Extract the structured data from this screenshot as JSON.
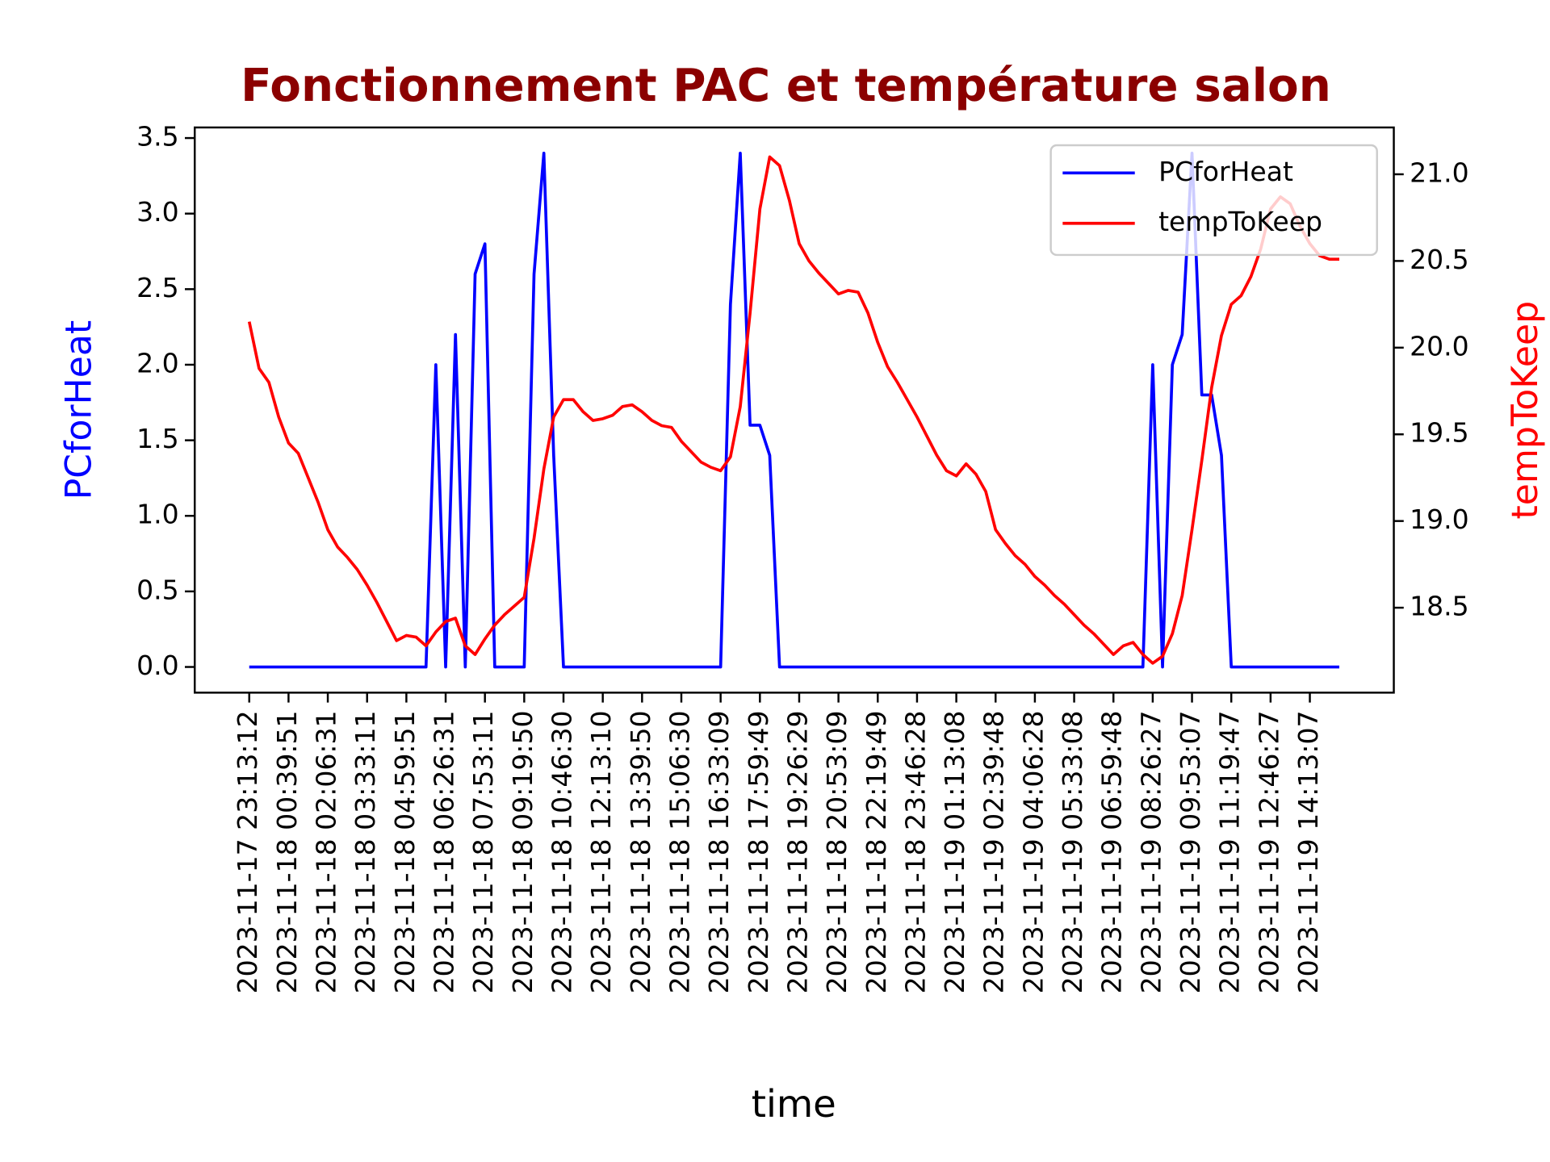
{
  "chart_data": {
    "type": "line",
    "title": "Fonctionnement PAC et température salon",
    "title_color": "#8b0000",
    "x_label": "time",
    "y_label": "PCforHeat",
    "y_label_color": "#0000ff",
    "y2_label": "tempToKeep",
    "y2_label_color": "#ff0000",
    "categories": [
      "2023-11-17 23:13:12",
      null,
      null,
      null,
      "2023-11-18 00:39:51",
      null,
      null,
      null,
      "2023-11-18 02:06:31",
      null,
      null,
      null,
      "2023-11-18 03:33:11",
      null,
      null,
      null,
      "2023-11-18 04:59:51",
      null,
      null,
      null,
      "2023-11-18 06:26:31",
      null,
      null,
      null,
      "2023-11-18 07:53:11",
      null,
      null,
      null,
      "2023-11-18 09:19:50",
      null,
      null,
      null,
      "2023-11-18 10:46:30",
      null,
      null,
      null,
      "2023-11-18 12:13:10",
      null,
      null,
      null,
      "2023-11-18 13:39:50",
      null,
      null,
      null,
      "2023-11-18 15:06:30",
      null,
      null,
      null,
      "2023-11-18 16:33:09",
      null,
      null,
      null,
      "2023-11-18 17:59:49",
      null,
      null,
      null,
      "2023-11-18 19:26:29",
      null,
      null,
      null,
      "2023-11-18 20:53:09",
      null,
      null,
      null,
      "2023-11-18 22:19:49",
      null,
      null,
      null,
      "2023-11-18 23:46:28",
      null,
      null,
      null,
      "2023-11-19 01:13:08",
      null,
      null,
      null,
      "2023-11-19 02:39:48",
      null,
      null,
      null,
      "2023-11-19 04:06:28",
      null,
      null,
      null,
      "2023-11-19 05:33:08",
      null,
      null,
      null,
      "2023-11-19 06:59:48",
      null,
      null,
      null,
      "2023-11-19 08:26:27",
      null,
      null,
      null,
      "2023-11-19 09:53:07",
      null,
      null,
      null,
      "2023-11-19 11:19:47",
      null,
      null,
      null,
      "2023-11-19 12:46:27",
      null,
      null,
      null,
      "2023-11-19 14:13:07",
      null,
      null,
      null
    ],
    "series": [
      {
        "name": "PCforHeat",
        "color": "#0000ff",
        "values": [
          0,
          0,
          0,
          0,
          0,
          0,
          0,
          0,
          0,
          0,
          0,
          0,
          0,
          0,
          0,
          0,
          0,
          0,
          0,
          2.0,
          0,
          2.2,
          0,
          2.6,
          2.8,
          0,
          0,
          0,
          0,
          2.6,
          3.4,
          1.4,
          0,
          0,
          0,
          0,
          0,
          0,
          0,
          0,
          0,
          0,
          0,
          0,
          0,
          0,
          0,
          0,
          0,
          2.4,
          3.4,
          1.6,
          1.6,
          1.4,
          0,
          0,
          0,
          0,
          0,
          0,
          0,
          0,
          0,
          0,
          0,
          0,
          0,
          0,
          0,
          0,
          0,
          0,
          0,
          0,
          0,
          0,
          0,
          0,
          0,
          0,
          0,
          0,
          0,
          0,
          0,
          0,
          0,
          0,
          0,
          0,
          0,
          0,
          2.0,
          0,
          2.0,
          2.2,
          3.4,
          1.8,
          1.8,
          1.4,
          0,
          0,
          0,
          0,
          0,
          0,
          0,
          0,
          0,
          0,
          0,
          0
        ]
      },
      {
        "name": "tempToKeep",
        "color": "#ff0000",
        "axis": "y2",
        "values": [
          20.15,
          19.88,
          19.8,
          19.6,
          19.45,
          19.39,
          19.25,
          19.11,
          18.95,
          18.85,
          18.79,
          18.72,
          18.63,
          18.53,
          18.42,
          18.31,
          18.34,
          18.33,
          18.28,
          18.36,
          18.42,
          18.44,
          18.28,
          18.23,
          18.32,
          18.4,
          18.46,
          18.51,
          18.56,
          18.9,
          19.3,
          19.6,
          19.7,
          19.7,
          19.63,
          19.58,
          19.59,
          19.61,
          19.66,
          19.67,
          19.63,
          19.58,
          19.55,
          19.54,
          19.46,
          19.4,
          19.34,
          19.31,
          19.29,
          19.37,
          19.66,
          20.2,
          20.8,
          21.1,
          21.05,
          20.85,
          20.6,
          20.5,
          20.43,
          20.37,
          20.31,
          20.33,
          20.32,
          20.2,
          20.03,
          19.89,
          19.8,
          19.7,
          19.6,
          19.49,
          19.38,
          19.29,
          19.26,
          19.33,
          19.27,
          19.17,
          18.95,
          18.87,
          18.8,
          18.75,
          18.68,
          18.63,
          18.57,
          18.52,
          18.46,
          18.4,
          18.35,
          18.29,
          18.23,
          18.28,
          18.3,
          18.23,
          18.18,
          18.22,
          18.35,
          18.57,
          18.95,
          19.35,
          19.77,
          20.07,
          20.25,
          20.3,
          20.41,
          20.57,
          20.8,
          20.87,
          20.83,
          20.7,
          20.6,
          20.53,
          20.51,
          20.51
        ]
      }
    ],
    "xlim": [
      -5.55,
      116.55
    ],
    "ylim": [
      -0.17,
      3.57
    ],
    "yticks": [
      {
        "value": 0,
        "label": "0.0"
      },
      0.5,
      {
        "value": 1,
        "label": "1.0"
      },
      1.5,
      {
        "value": 2,
        "label": "2.0"
      },
      2.5,
      {
        "value": 3,
        "label": "3.0"
      },
      3.5
    ],
    "y2lim": [
      18.01,
      21.27
    ],
    "y2ticks": [
      18.5,
      {
        "value": 19,
        "label": "19.0"
      },
      19.5,
      {
        "value": 20,
        "label": "20.0"
      },
      20.5,
      {
        "value": 21,
        "label": "21.0"
      }
    ],
    "legend": "upper right",
    "grid": false
  }
}
